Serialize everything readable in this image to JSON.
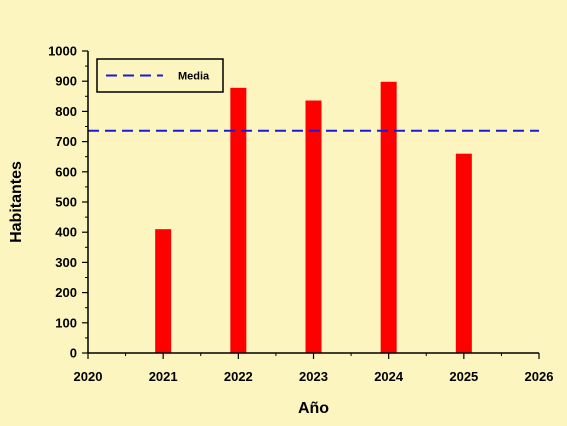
{
  "chart_data": {
    "type": "bar",
    "xlabel": "Año",
    "ylabel": "Habitantes",
    "xlim": [
      2020,
      2026
    ],
    "ylim": [
      0,
      1000
    ],
    "x_ticks": [
      2020,
      2021,
      2022,
      2023,
      2024,
      2025,
      2026
    ],
    "y_ticks": [
      0,
      100,
      200,
      300,
      400,
      500,
      600,
      700,
      800,
      900,
      1000
    ],
    "x": [
      2021,
      2022,
      2023,
      2024,
      2025
    ],
    "values": [
      410,
      878,
      836,
      898,
      660
    ],
    "reference_line": {
      "name": "Media",
      "value": 736,
      "style": "dashed",
      "color": "#1a1adb"
    },
    "bar_color": "#ff0000",
    "legend": {
      "position": "top-left",
      "entries": [
        "Media"
      ]
    },
    "grid": false
  }
}
